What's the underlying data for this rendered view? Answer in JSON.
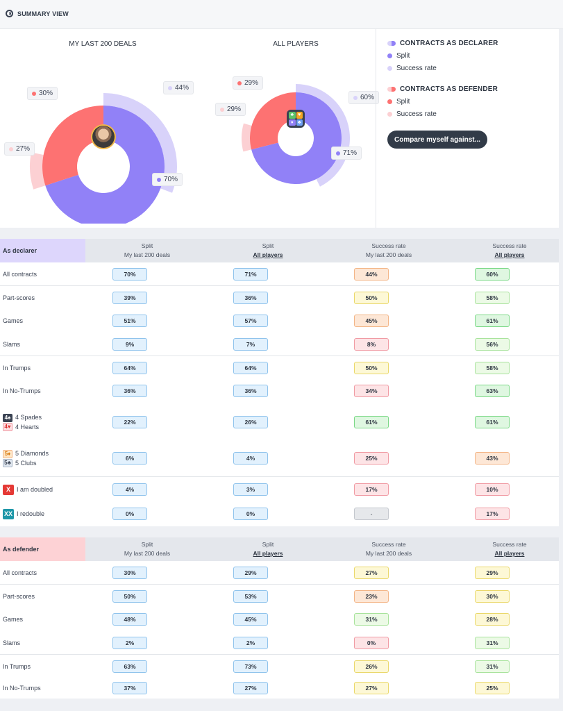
{
  "header": {
    "title": "SUMMARY VIEW"
  },
  "charts": {
    "mine": {
      "title": "MY LAST 200 DEALS",
      "split_declarer_pct": 70,
      "split_defender_pct": 30,
      "success_declarer_pct": 44,
      "success_defender_pct": 27,
      "labels": {
        "split_decl": "70%",
        "split_def": "30%",
        "succ_decl": "44%",
        "succ_def": "27%"
      }
    },
    "all": {
      "title": "ALL PLAYERS",
      "split_declarer_pct": 71,
      "split_defender_pct": 29,
      "success_declarer_pct": 60,
      "success_defender_pct": 29,
      "labels": {
        "split_decl": "71%",
        "split_def": "29%",
        "succ_decl": "60%",
        "succ_def": "29%"
      }
    },
    "colors": {
      "declarer_split": "#9181f7",
      "declarer_success": "#d8d2fa",
      "defender_split": "#fd7272",
      "defender_success": "#fcd0d3"
    }
  },
  "legend": {
    "declarer_head": "CONTRACTS AS DECLARER",
    "declarer_split": "Split",
    "declarer_success": "Success rate",
    "defender_head": "CONTRACTS AS DEFENDER",
    "defender_split": "Split",
    "defender_success": "Success rate",
    "compare_button": "Compare myself against..."
  },
  "columns": [
    {
      "l1": "Split",
      "l2": "My last 200 deals"
    },
    {
      "l1": "Split",
      "l2": "All players"
    },
    {
      "l1": "Success rate",
      "l2": "My last 200 deals"
    },
    {
      "l1": "Success rate",
      "l2": "All players"
    }
  ],
  "declarer": {
    "label": "As declarer",
    "rows": [
      {
        "label": "All contracts",
        "vals": [
          "70%",
          "71%",
          "44%",
          "60%"
        ],
        "tones": [
          "blue",
          "blue",
          "orange",
          "green"
        ]
      },
      {
        "label": "Part-scores",
        "vals": [
          "39%",
          "36%",
          "50%",
          "58%"
        ],
        "tones": [
          "blue",
          "blue",
          "yellow",
          "lgreen"
        ]
      },
      {
        "label": "Games",
        "vals": [
          "51%",
          "57%",
          "45%",
          "61%"
        ],
        "tones": [
          "blue",
          "blue",
          "orange",
          "green"
        ]
      },
      {
        "label": "Slams",
        "vals": [
          "9%",
          "7%",
          "8%",
          "56%"
        ],
        "tones": [
          "blue",
          "blue",
          "red",
          "lgreen"
        ]
      },
      {
        "label": "In Trumps",
        "vals": [
          "64%",
          "64%",
          "50%",
          "58%"
        ],
        "tones": [
          "blue",
          "blue",
          "yellow",
          "lgreen"
        ]
      },
      {
        "label": "In No-Trumps",
        "vals": [
          "36%",
          "36%",
          "34%",
          "63%"
        ],
        "tones": [
          "blue",
          "blue",
          "red",
          "green"
        ]
      },
      {
        "label": "4 Spades",
        "label2": "4 Hearts",
        "vals": [
          "22%",
          "26%",
          "61%",
          "61%"
        ],
        "tones": [
          "blue",
          "blue",
          "green",
          "green"
        ]
      },
      {
        "label": "5 Diamonds",
        "label2": "5 Clubs",
        "vals": [
          "6%",
          "4%",
          "25%",
          "43%"
        ],
        "tones": [
          "blue",
          "blue",
          "red",
          "orange"
        ]
      },
      {
        "label": "I am doubled",
        "badge": "X",
        "vals": [
          "4%",
          "3%",
          "17%",
          "10%"
        ],
        "tones": [
          "blue",
          "blue",
          "red",
          "red"
        ]
      },
      {
        "label": "I redouble",
        "badge": "XX",
        "vals": [
          "0%",
          "0%",
          "-",
          "17%"
        ],
        "tones": [
          "blue",
          "blue",
          "grey",
          "red"
        ]
      }
    ]
  },
  "defender": {
    "label": "As defender",
    "rows": [
      {
        "label": "All contracts",
        "vals": [
          "30%",
          "29%",
          "27%",
          "29%"
        ],
        "tones": [
          "blue",
          "blue",
          "yellow",
          "yellow"
        ]
      },
      {
        "label": "Part-scores",
        "vals": [
          "50%",
          "53%",
          "23%",
          "30%"
        ],
        "tones": [
          "blue",
          "blue",
          "orange",
          "yellow"
        ]
      },
      {
        "label": "Games",
        "vals": [
          "48%",
          "45%",
          "31%",
          "28%"
        ],
        "tones": [
          "blue",
          "blue",
          "lgreen",
          "yellow"
        ]
      },
      {
        "label": "Slams",
        "vals": [
          "2%",
          "2%",
          "0%",
          "31%"
        ],
        "tones": [
          "blue",
          "blue",
          "red",
          "lgreen"
        ]
      },
      {
        "label": "In Trumps",
        "vals": [
          "63%",
          "73%",
          "26%",
          "31%"
        ],
        "tones": [
          "blue",
          "blue",
          "yellow",
          "lgreen"
        ]
      },
      {
        "label": "In No-Trumps",
        "vals": [
          "37%",
          "27%",
          "27%",
          "25%"
        ],
        "tones": [
          "blue",
          "blue",
          "yellow",
          "yellow"
        ]
      }
    ]
  }
}
